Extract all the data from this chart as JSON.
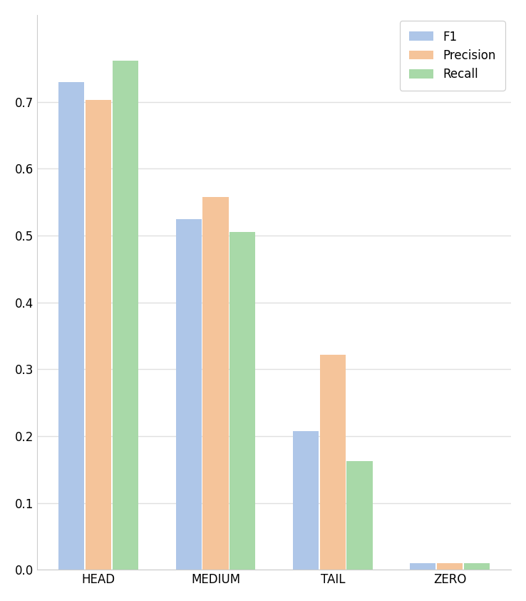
{
  "categories": [
    "HEAD",
    "MEDIUM",
    "TAIL",
    "ZERO"
  ],
  "metrics": [
    "F1",
    "Precision",
    "Recall"
  ],
  "values": {
    "F1": [
      0.73,
      0.525,
      0.207,
      0.01
    ],
    "Precision": [
      0.703,
      0.558,
      0.322,
      0.01
    ],
    "Recall": [
      0.762,
      0.505,
      0.163,
      0.01
    ]
  },
  "colors": {
    "F1": "#aec6e8",
    "Precision": "#f5c49a",
    "Recall": "#a8d9a8"
  },
  "background_color": "#ffffff",
  "plot_bg_color": "#ffffff",
  "grid_color": "#e0e0e0",
  "bar_width": 0.22,
  "bar_gap": 0.01,
  "ylim": [
    0,
    0.83
  ],
  "yticks": [
    0.0,
    0.1,
    0.2,
    0.3,
    0.4,
    0.5,
    0.6,
    0.7
  ],
  "figsize": [
    7.38,
    8.42
  ],
  "dpi": 100,
  "legend_fontsize": 12,
  "tick_fontsize": 12,
  "legend_loc": "upper right"
}
